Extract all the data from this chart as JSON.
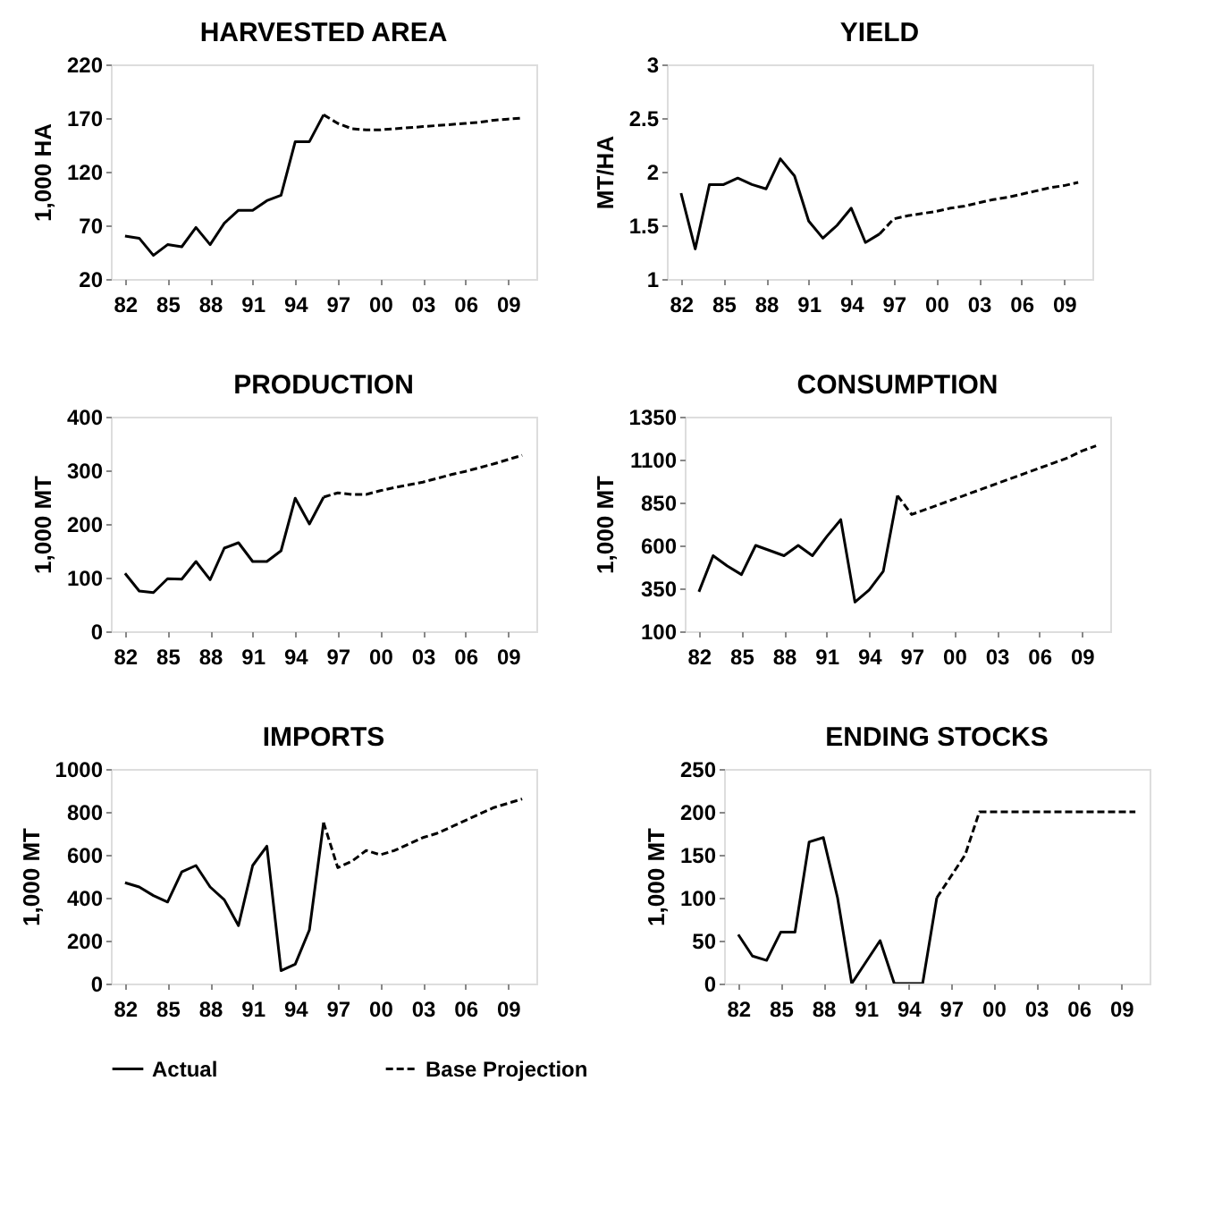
{
  "chart_data": [
    {
      "type": "line",
      "title": "HARVESTED AREA",
      "ylabel": "1,000 HA",
      "xlim": [
        1981,
        2011
      ],
      "ylim": [
        20,
        220
      ],
      "yticks": [
        20,
        70,
        120,
        170,
        220
      ],
      "xticks": [
        {
          "value": 1982,
          "label": "82"
        },
        {
          "value": 1985,
          "label": "85"
        },
        {
          "value": 1988,
          "label": "88"
        },
        {
          "value": 1991,
          "label": "91"
        },
        {
          "value": 1994,
          "label": "94"
        },
        {
          "value": 1997,
          "label": "97"
        },
        {
          "value": 2000,
          "label": "00"
        },
        {
          "value": 2003,
          "label": "03"
        },
        {
          "value": 2006,
          "label": "06"
        },
        {
          "value": 2009,
          "label": "09"
        }
      ],
      "series": [
        {
          "color": "#000000",
          "line_style": "solid",
          "x": [
            1982,
            1983,
            1984,
            1985,
            1986,
            1987,
            1988,
            1989,
            1990,
            1991,
            1992,
            1993,
            1994,
            1995,
            1996
          ],
          "values": [
            60,
            58,
            42,
            52,
            50,
            68,
            52,
            72,
            84,
            84,
            93,
            98,
            148,
            148,
            173
          ]
        },
        {
          "color": "#000000",
          "line_style": "dashed",
          "x": [
            1996,
            1997,
            1998,
            1999,
            2000,
            2001,
            2002,
            2003,
            2004,
            2005,
            2006,
            2007,
            2008,
            2009,
            2010
          ],
          "values": [
            173,
            165,
            160,
            159,
            159,
            160,
            161,
            162,
            163,
            164,
            165,
            166,
            168,
            169,
            170
          ]
        }
      ]
    },
    {
      "type": "line",
      "title": "YIELD",
      "ylabel": "MT/HA",
      "xlim": [
        1981,
        2011
      ],
      "ylim": [
        1,
        3
      ],
      "yticks": [
        1,
        1.5,
        2,
        2.5,
        3
      ],
      "xticks": [
        {
          "value": 1982,
          "label": "82"
        },
        {
          "value": 1985,
          "label": "85"
        },
        {
          "value": 1988,
          "label": "88"
        },
        {
          "value": 1991,
          "label": "91"
        },
        {
          "value": 1994,
          "label": "94"
        },
        {
          "value": 1997,
          "label": "97"
        },
        {
          "value": 2000,
          "label": "00"
        },
        {
          "value": 2003,
          "label": "03"
        },
        {
          "value": 2006,
          "label": "06"
        },
        {
          "value": 2009,
          "label": "09"
        }
      ],
      "series": [
        {
          "color": "#000000",
          "line_style": "solid",
          "x": [
            1982,
            1983,
            1984,
            1985,
            1986,
            1987,
            1988,
            1989,
            1990,
            1991,
            1992,
            1993,
            1994,
            1995,
            1996
          ],
          "values": [
            1.8,
            1.28,
            1.88,
            1.88,
            1.94,
            1.88,
            1.84,
            2.12,
            1.96,
            1.54,
            1.38,
            1.5,
            1.66,
            1.34,
            1.42
          ]
        },
        {
          "color": "#000000",
          "line_style": "dashed",
          "x": [
            1996,
            1997,
            1998,
            1999,
            2000,
            2001,
            2002,
            2003,
            2004,
            2005,
            2006,
            2007,
            2008,
            2009,
            2010
          ],
          "values": [
            1.42,
            1.56,
            1.59,
            1.61,
            1.63,
            1.66,
            1.68,
            1.71,
            1.74,
            1.76,
            1.79,
            1.82,
            1.85,
            1.87,
            1.9
          ]
        }
      ]
    },
    {
      "type": "line",
      "title": "PRODUCTION",
      "ylabel": "1,000 MT",
      "xlim": [
        1981,
        2011
      ],
      "ylim": [
        0,
        400
      ],
      "yticks": [
        0,
        100,
        200,
        300,
        400
      ],
      "xticks": [
        {
          "value": 1982,
          "label": "82"
        },
        {
          "value": 1985,
          "label": "85"
        },
        {
          "value": 1988,
          "label": "88"
        },
        {
          "value": 1991,
          "label": "91"
        },
        {
          "value": 1994,
          "label": "94"
        },
        {
          "value": 1997,
          "label": "97"
        },
        {
          "value": 2000,
          "label": "00"
        },
        {
          "value": 2003,
          "label": "03"
        },
        {
          "value": 2006,
          "label": "06"
        },
        {
          "value": 2009,
          "label": "09"
        }
      ],
      "series": [
        {
          "color": "#000000",
          "line_style": "solid",
          "x": [
            1982,
            1983,
            1984,
            1985,
            1986,
            1987,
            1988,
            1989,
            1990,
            1991,
            1992,
            1993,
            1994,
            1995,
            1996
          ],
          "values": [
            108,
            75,
            72,
            98,
            97,
            130,
            96,
            155,
            165,
            130,
            130,
            150,
            248,
            200,
            250
          ]
        },
        {
          "color": "#000000",
          "line_style": "dashed",
          "x": [
            1996,
            1997,
            1998,
            1999,
            2000,
            2001,
            2002,
            2003,
            2004,
            2005,
            2006,
            2007,
            2008,
            2009,
            2010
          ],
          "values": [
            250,
            258,
            255,
            255,
            262,
            268,
            273,
            278,
            285,
            292,
            298,
            305,
            312,
            320,
            328
          ]
        }
      ]
    },
    {
      "type": "line",
      "title": "CONSUMPTION",
      "ylabel": "1,000 MT",
      "xlim": [
        1981,
        2011
      ],
      "ylim": [
        100,
        1350
      ],
      "yticks": [
        100,
        350,
        600,
        850,
        1100,
        1350
      ],
      "xticks": [
        {
          "value": 1982,
          "label": "82"
        },
        {
          "value": 1985,
          "label": "85"
        },
        {
          "value": 1988,
          "label": "88"
        },
        {
          "value": 1991,
          "label": "91"
        },
        {
          "value": 1994,
          "label": "94"
        },
        {
          "value": 1997,
          "label": "97"
        },
        {
          "value": 2000,
          "label": "00"
        },
        {
          "value": 2003,
          "label": "03"
        },
        {
          "value": 2006,
          "label": "06"
        },
        {
          "value": 2009,
          "label": "09"
        }
      ],
      "series": [
        {
          "color": "#000000",
          "line_style": "solid",
          "x": [
            1982,
            1983,
            1984,
            1985,
            1986,
            1987,
            1988,
            1989,
            1990,
            1991,
            1992,
            1993,
            1994,
            1995,
            1996
          ],
          "values": [
            330,
            540,
            480,
            430,
            600,
            570,
            540,
            600,
            540,
            650,
            750,
            270,
            340,
            450,
            890
          ]
        },
        {
          "color": "#000000",
          "line_style": "dashed",
          "x": [
            1996,
            1997,
            1998,
            1999,
            2000,
            2001,
            2002,
            2003,
            2004,
            2005,
            2006,
            2007,
            2008,
            2009,
            2010
          ],
          "values": [
            890,
            780,
            810,
            840,
            870,
            900,
            930,
            960,
            990,
            1020,
            1050,
            1080,
            1110,
            1150,
            1180
          ]
        }
      ]
    },
    {
      "type": "line",
      "title": "IMPORTS",
      "ylabel": "1,000 MT",
      "xlim": [
        1981,
        2011
      ],
      "ylim": [
        0,
        1000
      ],
      "yticks": [
        0,
        200,
        400,
        600,
        800,
        1000
      ],
      "legend": "bottom",
      "xticks": [
        {
          "value": 1982,
          "label": "82"
        },
        {
          "value": 1985,
          "label": "85"
        },
        {
          "value": 1988,
          "label": "88"
        },
        {
          "value": 1991,
          "label": "91"
        },
        {
          "value": 1994,
          "label": "94"
        },
        {
          "value": 1997,
          "label": "97"
        },
        {
          "value": 2000,
          "label": "00"
        },
        {
          "value": 2003,
          "label": "03"
        },
        {
          "value": 2006,
          "label": "06"
        },
        {
          "value": 2009,
          "label": "09"
        }
      ],
      "series": [
        {
          "name": "Actual",
          "color": "#000000",
          "line_style": "solid",
          "x": [
            1982,
            1983,
            1984,
            1985,
            1986,
            1987,
            1988,
            1989,
            1990,
            1991,
            1992,
            1993,
            1994,
            1995,
            1996
          ],
          "values": [
            470,
            450,
            410,
            380,
            520,
            550,
            450,
            390,
            270,
            550,
            640,
            60,
            90,
            250,
            750
          ]
        },
        {
          "name": "Base Projection",
          "color": "#000000",
          "line_style": "dashed",
          "x": [
            1996,
            1997,
            1998,
            1999,
            2000,
            2001,
            2002,
            2003,
            2004,
            2005,
            2006,
            2007,
            2008,
            2009,
            2010
          ],
          "values": [
            750,
            540,
            570,
            620,
            600,
            620,
            650,
            680,
            700,
            730,
            760,
            790,
            820,
            840,
            860
          ]
        }
      ]
    },
    {
      "type": "line",
      "title": "ENDING STOCKS",
      "ylabel": "1,000 MT",
      "xlim": [
        1981,
        2011
      ],
      "ylim": [
        0,
        250
      ],
      "yticks": [
        0,
        50,
        100,
        150,
        200,
        250
      ],
      "xticks": [
        {
          "value": 1982,
          "label": "82"
        },
        {
          "value": 1985,
          "label": "85"
        },
        {
          "value": 1988,
          "label": "88"
        },
        {
          "value": 1991,
          "label": "91"
        },
        {
          "value": 1994,
          "label": "94"
        },
        {
          "value": 1997,
          "label": "97"
        },
        {
          "value": 2000,
          "label": "00"
        },
        {
          "value": 2003,
          "label": "03"
        },
        {
          "value": 2006,
          "label": "06"
        },
        {
          "value": 2009,
          "label": "09"
        }
      ],
      "series": [
        {
          "color": "#000000",
          "line_style": "solid",
          "x": [
            1982,
            1983,
            1984,
            1985,
            1986,
            1987,
            1988,
            1989,
            1990,
            1991,
            1992,
            1993,
            1994,
            1995,
            1996
          ],
          "values": [
            57,
            32,
            27,
            60,
            60,
            165,
            170,
            100,
            0,
            25,
            50,
            0,
            0,
            0,
            100
          ]
        },
        {
          "color": "#000000",
          "line_style": "dashed",
          "x": [
            1996,
            1997,
            1998,
            1999,
            2000,
            2001,
            2002,
            2003,
            2004,
            2005,
            2006,
            2007,
            2008,
            2009,
            2010
          ],
          "values": [
            100,
            125,
            150,
            200,
            200,
            200,
            200,
            200,
            200,
            200,
            200,
            200,
            200,
            200,
            200
          ]
        }
      ]
    }
  ]
}
